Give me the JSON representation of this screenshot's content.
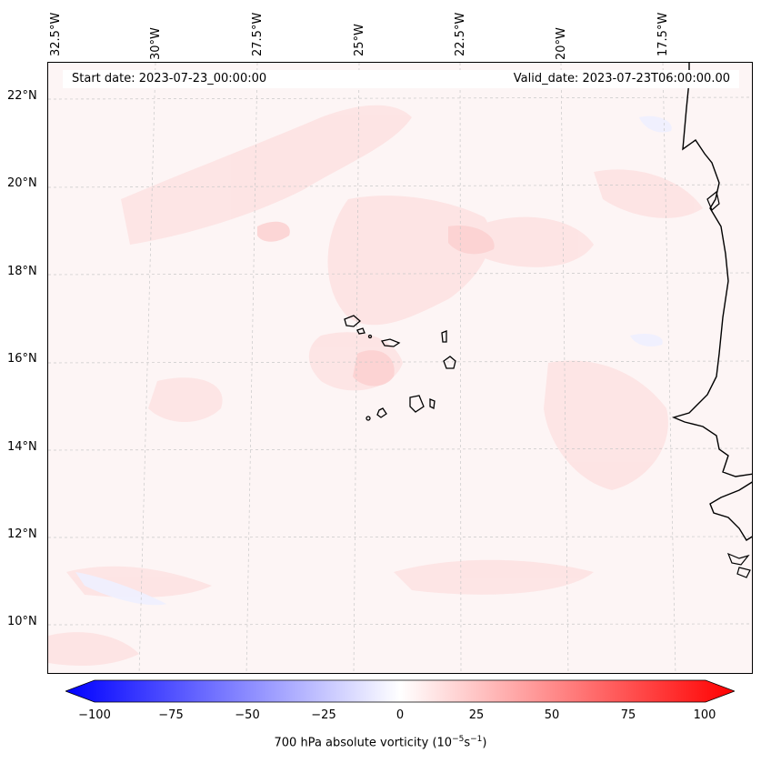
{
  "lon_labels": [
    "32.5°W",
    "30°W",
    "27.5°W",
    "25°W",
    "22.5°W",
    "20°W",
    "17.5°W"
  ],
  "lat_labels": [
    "22°N",
    "20°N",
    "18°N",
    "16°N",
    "14°N",
    "12°N",
    "10°N"
  ],
  "start_label": "Start date: 2023-07-23_00:00:00",
  "valid_label": "Valid_date: 2023-07-23T06:00:00.00",
  "colorbar": {
    "label_main": "700 hPa absolute vorticity (10",
    "label_sup1": "−5",
    "label_mid": "s",
    "label_sup2": "−1",
    "label_end": ")",
    "ticks": [
      "−100",
      "−75",
      "−50",
      "−25",
      "0",
      "25",
      "50",
      "75",
      "100"
    ],
    "min": -100,
    "max": 100,
    "negative_color": "#0000ff",
    "zero_color": "#ffffff",
    "positive_color": "#ff0000"
  }
}
